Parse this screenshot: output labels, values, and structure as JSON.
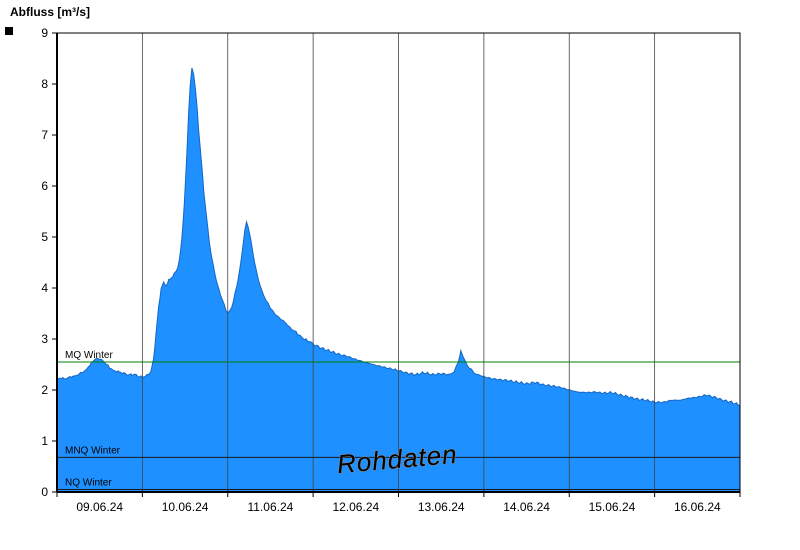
{
  "title": "Abfluss [m³/s]",
  "watermark": "Rohdaten",
  "chart_data": {
    "type": "area",
    "title": "Abfluss [m³/s]",
    "ylabel": "Abfluss [m³/s]",
    "xlabel": "",
    "ylim": [
      0,
      9
    ],
    "y_ticks": [
      0,
      1,
      2,
      3,
      4,
      5,
      6,
      7,
      8,
      9
    ],
    "x_domain": [
      0,
      8
    ],
    "x_labels": [
      "09.06.24",
      "10.06.24",
      "11.06.24",
      "12.06.24",
      "13.06.24",
      "14.06.24",
      "15.06.24",
      "16.06.24"
    ],
    "grid": "vertical-day-lines",
    "legend_position": "none",
    "noise": 0.025,
    "colors": {
      "fill": "#1E90FF",
      "stroke": "#1567C4",
      "grid": "#444444",
      "frame": "#000000",
      "mq_line": "#008000",
      "mnq_line": "#1a1a1a",
      "watermark_fill": "#ffffff",
      "watermark_stroke": "#8a8a8a"
    },
    "reference_lines": [
      {
        "id": "mq-winter",
        "label": "MQ Winter",
        "value": 2.55,
        "color": "#008000"
      },
      {
        "id": "mnq-winter",
        "label": "MNQ Winter",
        "value": 0.68,
        "color": "#1a1a1a"
      },
      {
        "id": "nq-winter",
        "label": "NQ Winter",
        "value": 0.05,
        "color": "#1a1a1a"
      }
    ],
    "series": [
      {
        "name": "Abfluss",
        "unit": "m³/s",
        "points": [
          [
            0.0,
            2.2
          ],
          [
            0.05,
            2.24
          ],
          [
            0.1,
            2.21
          ],
          [
            0.15,
            2.25
          ],
          [
            0.2,
            2.28
          ],
          [
            0.25,
            2.3
          ],
          [
            0.3,
            2.34
          ],
          [
            0.35,
            2.42
          ],
          [
            0.4,
            2.52
          ],
          [
            0.45,
            2.6
          ],
          [
            0.5,
            2.62
          ],
          [
            0.55,
            2.55
          ],
          [
            0.6,
            2.46
          ],
          [
            0.65,
            2.4
          ],
          [
            0.7,
            2.37
          ],
          [
            0.75,
            2.34
          ],
          [
            0.8,
            2.32
          ],
          [
            0.85,
            2.3
          ],
          [
            0.9,
            2.3
          ],
          [
            0.95,
            2.27
          ],
          [
            1.0,
            2.25
          ],
          [
            1.05,
            2.28
          ],
          [
            1.1,
            2.36
          ],
          [
            1.13,
            2.6
          ],
          [
            1.16,
            3.1
          ],
          [
            1.19,
            3.62
          ],
          [
            1.22,
            4.0
          ],
          [
            1.25,
            4.1
          ],
          [
            1.28,
            4.05
          ],
          [
            1.31,
            4.15
          ],
          [
            1.34,
            4.2
          ],
          [
            1.37,
            4.26
          ],
          [
            1.4,
            4.34
          ],
          [
            1.43,
            4.5
          ],
          [
            1.46,
            4.92
          ],
          [
            1.49,
            5.6
          ],
          [
            1.52,
            6.6
          ],
          [
            1.54,
            7.4
          ],
          [
            1.56,
            7.96
          ],
          [
            1.58,
            8.3
          ],
          [
            1.6,
            8.22
          ],
          [
            1.62,
            7.92
          ],
          [
            1.64,
            7.55
          ],
          [
            1.66,
            7.1
          ],
          [
            1.69,
            6.5
          ],
          [
            1.72,
            5.9
          ],
          [
            1.75,
            5.42
          ],
          [
            1.78,
            4.96
          ],
          [
            1.81,
            4.62
          ],
          [
            1.84,
            4.36
          ],
          [
            1.87,
            4.12
          ],
          [
            1.9,
            3.95
          ],
          [
            1.93,
            3.8
          ],
          [
            1.96,
            3.66
          ],
          [
            2.0,
            3.5
          ],
          [
            2.03,
            3.56
          ],
          [
            2.06,
            3.7
          ],
          [
            2.09,
            3.92
          ],
          [
            2.12,
            4.16
          ],
          [
            2.15,
            4.46
          ],
          [
            2.18,
            4.86
          ],
          [
            2.2,
            5.12
          ],
          [
            2.22,
            5.3
          ],
          [
            2.24,
            5.2
          ],
          [
            2.27,
            4.94
          ],
          [
            2.3,
            4.64
          ],
          [
            2.33,
            4.38
          ],
          [
            2.36,
            4.16
          ],
          [
            2.39,
            4.0
          ],
          [
            2.42,
            3.86
          ],
          [
            2.45,
            3.76
          ],
          [
            2.5,
            3.6
          ],
          [
            2.55,
            3.5
          ],
          [
            2.6,
            3.42
          ],
          [
            2.65,
            3.35
          ],
          [
            2.7,
            3.28
          ],
          [
            2.75,
            3.2
          ],
          [
            2.8,
            3.13
          ],
          [
            2.85,
            3.06
          ],
          [
            2.9,
            3.0
          ],
          [
            2.95,
            2.95
          ],
          [
            3.0,
            2.9
          ],
          [
            3.1,
            2.82
          ],
          [
            3.2,
            2.76
          ],
          [
            3.3,
            2.7
          ],
          [
            3.4,
            2.66
          ],
          [
            3.5,
            2.6
          ],
          [
            3.6,
            2.55
          ],
          [
            3.7,
            2.5
          ],
          [
            3.8,
            2.46
          ],
          [
            3.9,
            2.42
          ],
          [
            4.0,
            2.38
          ],
          [
            4.1,
            2.33
          ],
          [
            4.2,
            2.3
          ],
          [
            4.3,
            2.34
          ],
          [
            4.4,
            2.3
          ],
          [
            4.5,
            2.32
          ],
          [
            4.6,
            2.3
          ],
          [
            4.65,
            2.36
          ],
          [
            4.7,
            2.55
          ],
          [
            4.73,
            2.75
          ],
          [
            4.76,
            2.64
          ],
          [
            4.8,
            2.5
          ],
          [
            4.85,
            2.4
          ],
          [
            4.9,
            2.32
          ],
          [
            5.0,
            2.26
          ],
          [
            5.1,
            2.22
          ],
          [
            5.2,
            2.2
          ],
          [
            5.3,
            2.18
          ],
          [
            5.4,
            2.15
          ],
          [
            5.5,
            2.12
          ],
          [
            5.6,
            2.15
          ],
          [
            5.7,
            2.1
          ],
          [
            5.8,
            2.08
          ],
          [
            5.9,
            2.05
          ],
          [
            6.0,
            2.0
          ],
          [
            6.1,
            1.96
          ],
          [
            6.2,
            1.95
          ],
          [
            6.3,
            1.96
          ],
          [
            6.4,
            1.94
          ],
          [
            6.5,
            1.95
          ],
          [
            6.6,
            1.9
          ],
          [
            6.7,
            1.86
          ],
          [
            6.8,
            1.82
          ],
          [
            6.9,
            1.8
          ],
          [
            7.0,
            1.76
          ],
          [
            7.1,
            1.76
          ],
          [
            7.2,
            1.8
          ],
          [
            7.3,
            1.8
          ],
          [
            7.4,
            1.84
          ],
          [
            7.5,
            1.86
          ],
          [
            7.6,
            1.9
          ],
          [
            7.7,
            1.86
          ],
          [
            7.8,
            1.8
          ],
          [
            7.9,
            1.76
          ],
          [
            8.0,
            1.7
          ]
        ]
      }
    ]
  }
}
